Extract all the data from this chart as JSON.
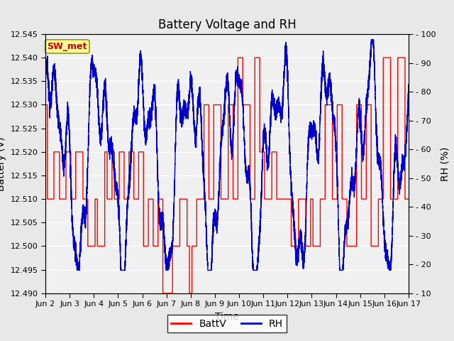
{
  "title": "Battery Voltage and RH",
  "xlabel": "Time",
  "ylabel_left": "Battery (V)",
  "ylabel_right": "RH (%)",
  "annotation_label": "SW_met",
  "ylim_left": [
    12.49,
    12.545
  ],
  "ylim_right": [
    10,
    100
  ],
  "yticks_left": [
    12.49,
    12.495,
    12.5,
    12.505,
    12.51,
    12.515,
    12.52,
    12.525,
    12.53,
    12.535,
    12.54,
    12.545
  ],
  "yticks_right": [
    10,
    20,
    30,
    40,
    50,
    60,
    70,
    80,
    90,
    100
  ],
  "x_tick_labels": [
    "Jun 2",
    "Jun 3",
    "Jun 4",
    "Jun 5",
    "Jun 6",
    "Jun 7",
    "Jun 8",
    "Jun 9",
    "Jun 10",
    "Jun 11",
    "Jun 12",
    "Jun 13",
    "Jun 14",
    "Jun 15",
    "Jun 16",
    "Jun 17"
  ],
  "color_batt": "#FF0000",
  "color_rh": "#0000CC",
  "bg_color": "#E8E8E8",
  "plot_bg_outer": "#DCDCDC",
  "plot_bg_inner": "#F0F0F0",
  "grid_color": "#FFFFFF",
  "title_fontsize": 12,
  "axis_fontsize": 10,
  "tick_fontsize": 8,
  "legend_fontsize": 10,
  "batt_steps_x": [
    0.0,
    0.08,
    0.35,
    0.58,
    0.85,
    1.05,
    1.25,
    1.55,
    1.75,
    2.05,
    2.15,
    2.45,
    2.55,
    2.75,
    2.85,
    3.05,
    3.25,
    3.45,
    3.65,
    3.85,
    4.05,
    4.25,
    4.45,
    4.65,
    4.85,
    5.25,
    5.55,
    5.85,
    5.95,
    6.05,
    6.25,
    6.55,
    6.75,
    6.95,
    7.25,
    7.55,
    7.75,
    7.95,
    8.15,
    8.45,
    8.65,
    8.85,
    9.05,
    9.35,
    9.55,
    9.85,
    10.15,
    10.45,
    10.75,
    10.95,
    11.05,
    11.35,
    11.55,
    11.85,
    12.05,
    12.25,
    12.45,
    12.85,
    13.05,
    13.25,
    13.45,
    13.75,
    13.95,
    14.25,
    14.55,
    14.85,
    15.0
  ],
  "batt_steps_v": [
    12.53,
    12.51,
    12.52,
    12.51,
    12.52,
    12.51,
    12.52,
    12.51,
    12.5,
    12.51,
    12.5,
    12.52,
    12.51,
    12.52,
    12.51,
    12.52,
    12.51,
    12.52,
    12.51,
    12.52,
    12.5,
    12.51,
    12.5,
    12.51,
    12.49,
    12.5,
    12.51,
    12.5,
    12.49,
    12.5,
    12.51,
    12.53,
    12.51,
    12.53,
    12.51,
    12.53,
    12.51,
    12.54,
    12.53,
    12.51,
    12.54,
    12.52,
    12.51,
    12.52,
    12.51,
    12.51,
    12.5,
    12.51,
    12.5,
    12.51,
    12.5,
    12.51,
    12.53,
    12.51,
    12.53,
    12.51,
    12.5,
    12.53,
    12.51,
    12.53,
    12.5,
    12.51,
    12.54,
    12.51,
    12.54,
    12.51
  ]
}
